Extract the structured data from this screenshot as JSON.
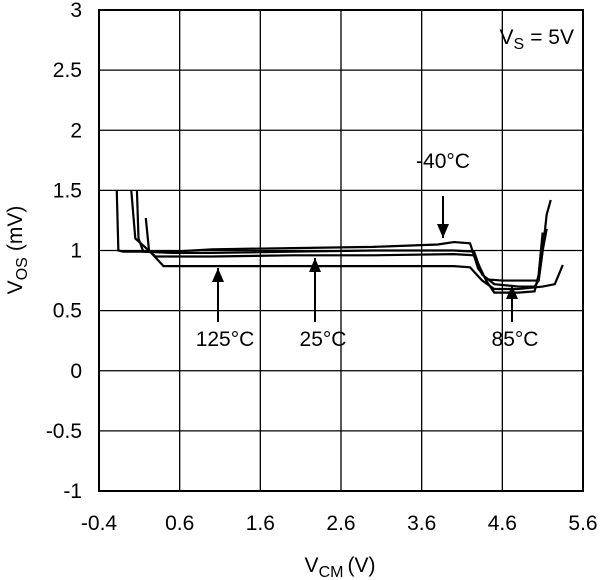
{
  "chart_data": {
    "type": "line",
    "x_label": {
      "main": "V",
      "sub": "CM",
      "unit": "(V)"
    },
    "y_label": {
      "main": "V",
      "sub": "OS",
      "unit": "(mV)"
    },
    "annotation": {
      "main": "V",
      "sub": "S",
      "rest": "= 5V"
    },
    "xlim": [
      -0.4,
      5.6
    ],
    "xticks": [
      -0.4,
      0.6,
      1.6,
      2.6,
      3.6,
      4.6,
      5.6
    ],
    "ylim": [
      -1,
      3
    ],
    "yticks": [
      -1,
      -0.5,
      0,
      0.5,
      1,
      1.5,
      2,
      2.5,
      3
    ],
    "grid": true,
    "series": [
      {
        "name": "-40°C",
        "color": "#000000",
        "x": [
          -0.18,
          -0.16,
          -0.1,
          0.5,
          1.0,
          2.0,
          3.0,
          3.8,
          4.0,
          4.2,
          4.3,
          4.4,
          4.6,
          4.9,
          5.05,
          5.1,
          5.15,
          5.2
        ],
        "values": [
          1.5,
          1.0,
          0.99,
          0.99,
          1.01,
          1.02,
          1.03,
          1.05,
          1.07,
          1.06,
          0.85,
          0.76,
          0.75,
          0.75,
          0.75,
          1.0,
          1.3,
          1.42
        ]
      },
      {
        "name": "125°C",
        "color": "#000000",
        "x": [
          0.18,
          0.22,
          0.4,
          1.0,
          2.0,
          3.0,
          4.0,
          4.2,
          4.35,
          4.5,
          4.8,
          5.1,
          5.25,
          5.3,
          5.35
        ],
        "values": [
          1.27,
          1.0,
          0.87,
          0.87,
          0.87,
          0.87,
          0.87,
          0.86,
          0.75,
          0.68,
          0.68,
          0.7,
          0.72,
          0.8,
          0.88
        ]
      },
      {
        "name": "25°C",
        "color": "#000000",
        "x": [
          0.07,
          0.09,
          0.15,
          0.5,
          1.0,
          2.0,
          3.0,
          4.0,
          4.25,
          4.35,
          4.5,
          4.8,
          5.0,
          5.05,
          5.1,
          5.15
        ],
        "values": [
          1.5,
          1.1,
          0.99,
          0.98,
          0.98,
          0.99,
          1.0,
          1.0,
          0.99,
          0.8,
          0.72,
          0.7,
          0.7,
          0.75,
          1.0,
          1.18
        ]
      },
      {
        "name": "85°C",
        "color": "#000000",
        "x": [
          0.0,
          0.05,
          0.3,
          1.0,
          2.0,
          3.0,
          4.0,
          4.25,
          4.4,
          4.5,
          4.8,
          5.0,
          5.05,
          5.1
        ],
        "values": [
          1.5,
          1.1,
          0.95,
          0.95,
          0.96,
          0.96,
          0.97,
          0.96,
          0.75,
          0.65,
          0.65,
          0.66,
          0.8,
          1.15
        ]
      }
    ]
  }
}
